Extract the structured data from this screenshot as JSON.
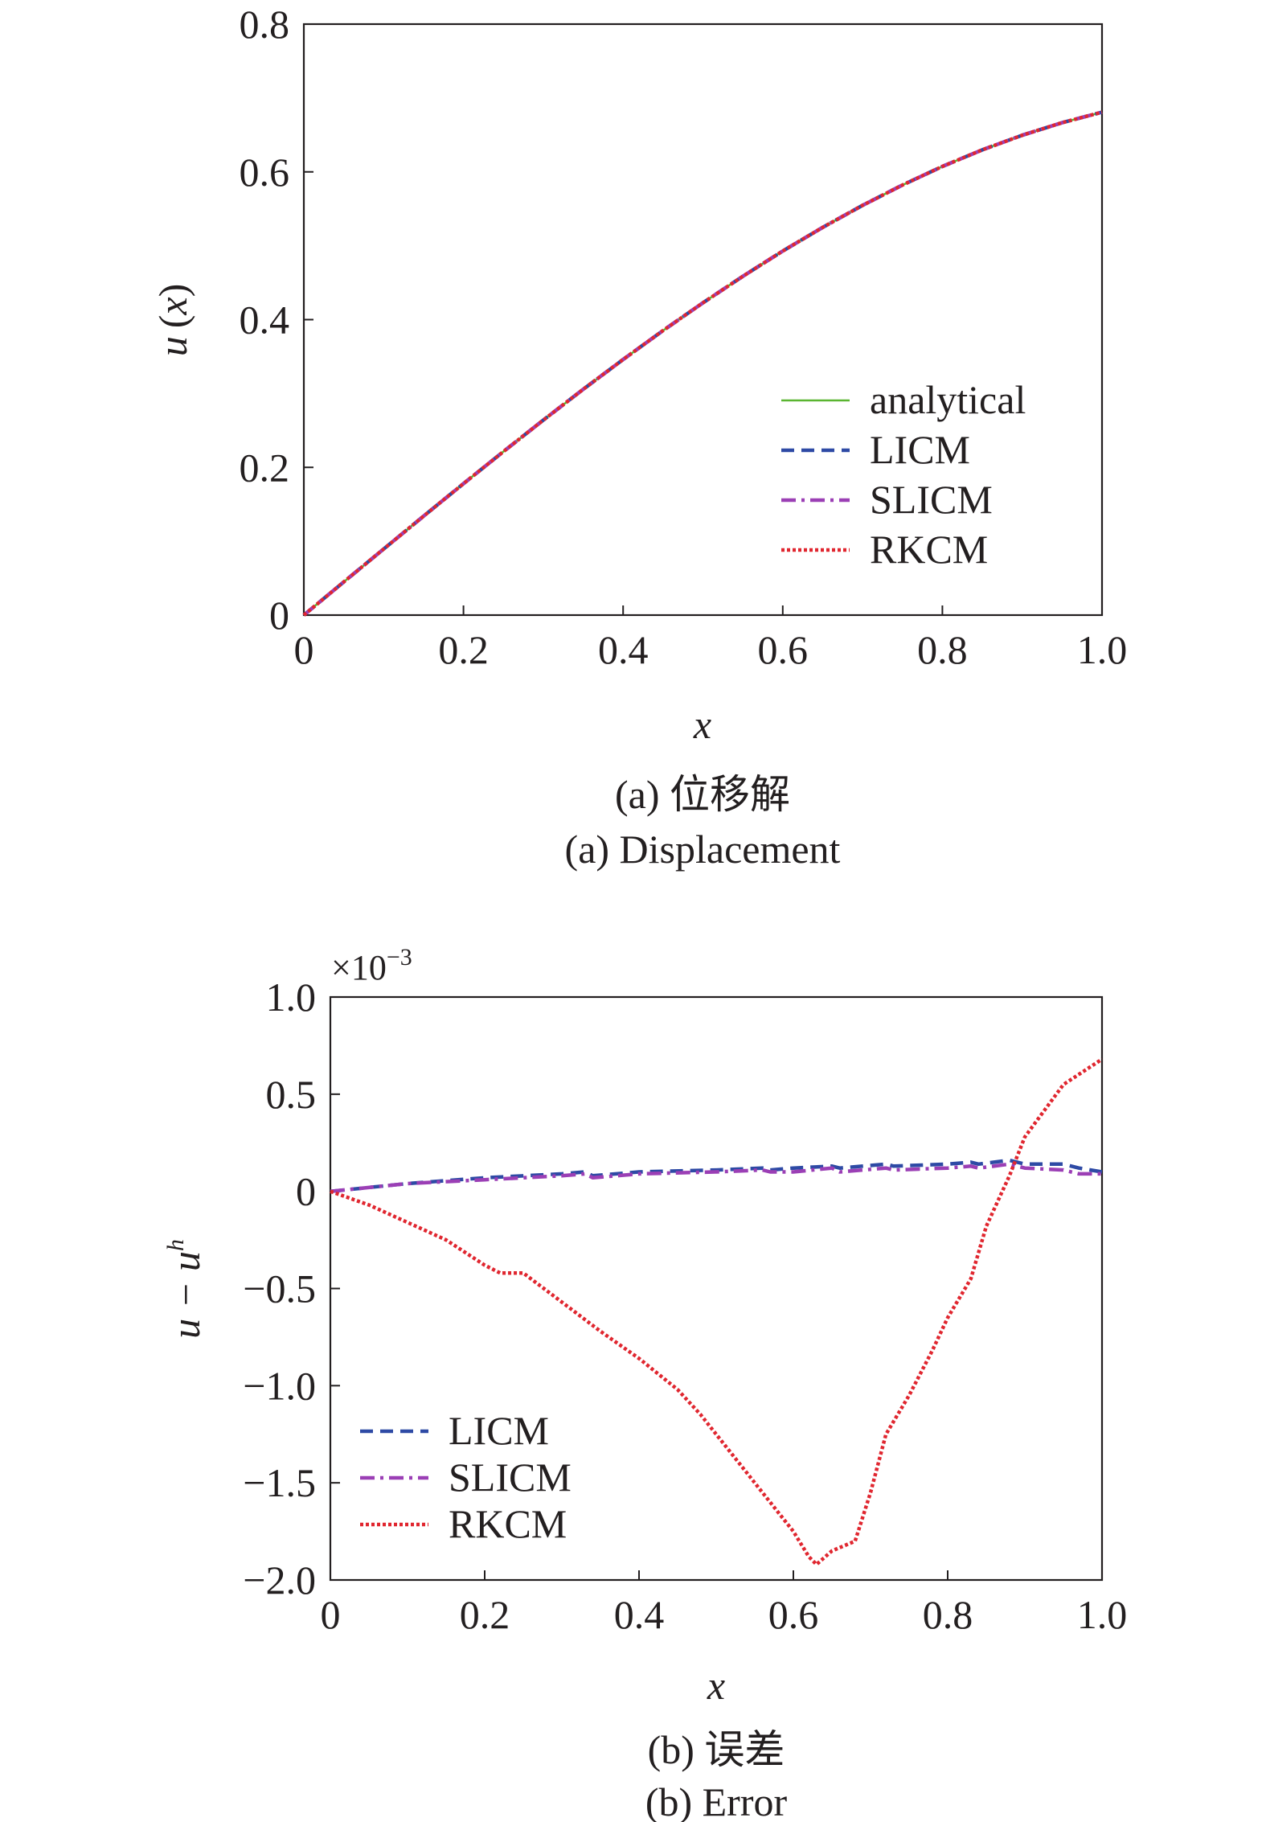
{
  "chart_data": [
    {
      "type": "line",
      "ylabel_main": "u",
      "ylabel_paren_open": "(",
      "ylabel_var": "x",
      "ylabel_paren_close": ")",
      "xlabel": "x",
      "caption_cn": "(a) 位移解",
      "caption_en": "(a) Displacement",
      "xlim": [
        0,
        1.0
      ],
      "ylim": [
        0,
        0.8
      ],
      "xticks": [
        "0",
        "0.2",
        "0.4",
        "0.6",
        "0.8",
        "1.0"
      ],
      "yticks": [
        "0",
        "0.2",
        "0.4",
        "0.6",
        "0.8"
      ],
      "legend_position": "lower-right",
      "x": [
        0,
        0.05,
        0.1,
        0.15,
        0.2,
        0.25,
        0.3,
        0.35,
        0.4,
        0.45,
        0.5,
        0.55,
        0.6,
        0.65,
        0.7,
        0.75,
        0.8,
        0.85,
        0.9,
        0.95,
        1.0
      ],
      "series": [
        {
          "name": "analytical",
          "color": "#5ab531",
          "style": "solid",
          "values": [
            0,
            0.0448,
            0.0895,
            0.134,
            0.178,
            0.2214,
            0.264,
            0.3056,
            0.346,
            0.3852,
            0.4228,
            0.4587,
            0.4928,
            0.5248,
            0.5547,
            0.5822,
            0.6073,
            0.6298,
            0.6496,
            0.6666,
            0.6808
          ]
        },
        {
          "name": "LICM",
          "color": "#2e4aa5",
          "style": "dashed",
          "values": [
            0,
            0.0448,
            0.0895,
            0.134,
            0.178,
            0.2214,
            0.264,
            0.3056,
            0.346,
            0.3852,
            0.4228,
            0.4587,
            0.4928,
            0.5248,
            0.5547,
            0.5822,
            0.6073,
            0.6298,
            0.6496,
            0.6666,
            0.6808
          ]
        },
        {
          "name": "SLICM",
          "color": "#9b3fb5",
          "style": "dashdot",
          "values": [
            0,
            0.0448,
            0.0895,
            0.134,
            0.178,
            0.2214,
            0.264,
            0.3056,
            0.346,
            0.3852,
            0.4228,
            0.4587,
            0.4928,
            0.5248,
            0.5547,
            0.5822,
            0.6073,
            0.6298,
            0.6496,
            0.6666,
            0.6808
          ]
        },
        {
          "name": "RKCM",
          "color": "#e0262f",
          "style": "dotted",
          "values": [
            0,
            0.0448,
            0.0895,
            0.134,
            0.178,
            0.2214,
            0.264,
            0.3056,
            0.346,
            0.3852,
            0.4228,
            0.4587,
            0.4928,
            0.5248,
            0.5547,
            0.5822,
            0.6073,
            0.6298,
            0.6496,
            0.6666,
            0.6808
          ]
        }
      ]
    },
    {
      "type": "line",
      "ylabel_main": "u − u",
      "ylabel_sup": "h",
      "xlabel": "x",
      "scale_note": "×10",
      "scale_exp": "−3",
      "caption_cn": "(b) 误差",
      "caption_en": "(b) Error",
      "xlim": [
        0,
        1.0
      ],
      "ylim": [
        -2.0,
        1.0
      ],
      "xticks": [
        "0",
        "0.2",
        "0.4",
        "0.6",
        "0.8",
        "1.0"
      ],
      "yticks": [
        "−2.0",
        "−1.5",
        "−1.0",
        "−0.5",
        "0",
        "0.5",
        "1.0"
      ],
      "legend_position": "lower-left",
      "series": [
        {
          "name": "LICM",
          "color": "#2e4aa5",
          "style": "dashed",
          "x": [
            0,
            0.1,
            0.2,
            0.3,
            0.33,
            0.34,
            0.4,
            0.5,
            0.56,
            0.57,
            0.6,
            0.65,
            0.66,
            0.72,
            0.73,
            0.8,
            0.83,
            0.84,
            0.88,
            0.9,
            0.95,
            0.97,
            1.0
          ],
          "values": [
            0,
            0.04,
            0.07,
            0.09,
            0.1,
            0.08,
            0.1,
            0.11,
            0.12,
            0.11,
            0.12,
            0.13,
            0.12,
            0.14,
            0.13,
            0.14,
            0.15,
            0.14,
            0.16,
            0.14,
            0.14,
            0.12,
            0.1
          ]
        },
        {
          "name": "SLICM",
          "color": "#9b3fb5",
          "style": "dashdot",
          "x": [
            0,
            0.1,
            0.2,
            0.3,
            0.33,
            0.34,
            0.4,
            0.5,
            0.56,
            0.57,
            0.6,
            0.65,
            0.66,
            0.72,
            0.73,
            0.8,
            0.83,
            0.84,
            0.88,
            0.9,
            0.95,
            0.97,
            1.0
          ],
          "values": [
            0,
            0.04,
            0.06,
            0.08,
            0.09,
            0.07,
            0.09,
            0.1,
            0.11,
            0.1,
            0.1,
            0.12,
            0.1,
            0.12,
            0.11,
            0.12,
            0.13,
            0.12,
            0.14,
            0.12,
            0.11,
            0.09,
            0.09
          ]
        },
        {
          "name": "RKCM",
          "color": "#e0262f",
          "style": "dotted",
          "x": [
            0,
            0.05,
            0.1,
            0.15,
            0.2,
            0.22,
            0.25,
            0.3,
            0.35,
            0.4,
            0.45,
            0.48,
            0.5,
            0.55,
            0.6,
            0.62,
            0.63,
            0.65,
            0.68,
            0.7,
            0.72,
            0.75,
            0.78,
            0.8,
            0.83,
            0.85,
            0.88,
            0.9,
            0.95,
            1.0
          ],
          "values": [
            0,
            -0.07,
            -0.16,
            -0.25,
            -0.38,
            -0.42,
            -0.42,
            -0.57,
            -0.72,
            -0.86,
            -1.02,
            -1.15,
            -1.25,
            -1.5,
            -1.75,
            -1.88,
            -1.92,
            -1.85,
            -1.8,
            -1.55,
            -1.25,
            -1.05,
            -0.82,
            -0.65,
            -0.45,
            -0.18,
            0.08,
            0.28,
            0.55,
            0.68
          ]
        }
      ]
    }
  ]
}
